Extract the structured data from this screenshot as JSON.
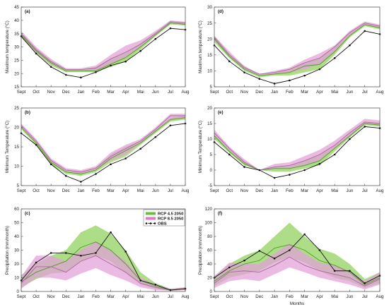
{
  "colors": {
    "rcp45": "#6dbf3b",
    "rcp85": "#d77fc6",
    "obs": "#111111",
    "rcp45_band": "#8fd05a",
    "rcp85_band": "#e3a0d8",
    "overlap": "#a8a2bf"
  },
  "months": [
    "Sept",
    "Oct",
    "Nov",
    "Dec",
    "Jan",
    "Feb",
    "Mar",
    "Apr",
    "Mai",
    "Jun",
    "Jul",
    "Aug"
  ],
  "xlabel_bottom": "Months",
  "legend": {
    "rcp45": "RCP 4.5 2050",
    "rcp85": "RCP 8.5 2050",
    "obs": "OBS"
  },
  "chart_data": [
    {
      "panel": "(a)",
      "type": "line",
      "ylabel": "Maximum temperature (°C)",
      "ylim": [
        15,
        45
      ],
      "yticks": [
        15,
        20,
        25,
        30,
        35,
        40,
        45
      ],
      "obs": [
        34,
        27.5,
        22.5,
        19.5,
        18.5,
        20.5,
        23,
        24.5,
        28.5,
        33,
        37,
        36.5
      ],
      "rcp45": {
        "mean": [
          34.5,
          28.5,
          24,
          21,
          21,
          21,
          23.5,
          26,
          30,
          34.5,
          39,
          38.5
        ],
        "low": [
          33.5,
          27.5,
          23,
          20.5,
          20.5,
          20.5,
          22.5,
          24.5,
          29,
          34,
          38.5,
          38
        ],
        "high": [
          35.5,
          29.5,
          25,
          21.5,
          21.5,
          22.5,
          25.5,
          28,
          31.5,
          35.5,
          39.5,
          39
        ]
      },
      "rcp85": {
        "mean": [
          35,
          29,
          24.5,
          21.5,
          21.5,
          22,
          25.5,
          28,
          31,
          35,
          39.5,
          39
        ],
        "low": [
          34,
          28,
          23.5,
          21,
          21,
          21,
          23.5,
          26,
          30,
          34.5,
          39,
          38.5
        ],
        "high": [
          36,
          30,
          25.5,
          22,
          22,
          23,
          27,
          30.5,
          32.5,
          36,
          40,
          39.5
        ]
      }
    },
    {
      "panel": "(d)",
      "type": "line",
      "ylabel": "Maximum temperature (°C)",
      "ylim": [
        5,
        30
      ],
      "yticks": [
        5,
        10,
        15,
        20,
        25,
        30
      ],
      "obs": [
        18,
        13,
        9.5,
        7.5,
        6,
        7,
        8.5,
        10.5,
        14,
        18,
        22.5,
        21.5
      ],
      "rcp45": {
        "mean": [
          20,
          14.5,
          10.5,
          8.5,
          9,
          9.5,
          11.5,
          12,
          16,
          21,
          24.5,
          23.5
        ],
        "low": [
          19,
          14,
          10,
          8,
          8.5,
          8.5,
          9.5,
          10.5,
          15,
          20.5,
          24,
          23
        ],
        "high": [
          21,
          15.5,
          11.5,
          9,
          9.5,
          10.5,
          12.5,
          14,
          17.5,
          22,
          25,
          24
        ]
      },
      "rcp85": {
        "mean": [
          20.5,
          15,
          11,
          9,
          9.5,
          10.5,
          12.5,
          14,
          17.5,
          22,
          25,
          24
        ],
        "low": [
          19.5,
          14.5,
          10.5,
          8.5,
          9,
          9.5,
          10.5,
          12,
          16,
          21,
          24.5,
          23.5
        ],
        "high": [
          21,
          16,
          11.5,
          9,
          10,
          11,
          13.5,
          15.5,
          18,
          22.5,
          25.5,
          24.5
        ]
      }
    },
    {
      "panel": "(b)",
      "type": "line",
      "ylabel": "Minimum Temperature (°C)",
      "ylim": [
        5,
        25
      ],
      "yticks": [
        5,
        10,
        15,
        20,
        25
      ],
      "obs": [
        18.5,
        15.5,
        10.5,
        7.5,
        6,
        8,
        10.5,
        12,
        14.5,
        17.5,
        20.5,
        21
      ],
      "rcp45": {
        "mean": [
          20,
          16,
          11,
          8.5,
          8,
          9,
          12,
          14,
          16,
          19,
          22,
          22.5
        ],
        "low": [
          19.5,
          15.5,
          10.5,
          8,
          7.5,
          8.5,
          11,
          12.5,
          15.5,
          18.5,
          21.5,
          22
        ],
        "high": [
          20.5,
          16.5,
          11.5,
          9,
          8.5,
          9.5,
          13,
          15,
          16.5,
          19.5,
          22.5,
          23
        ]
      },
      "rcp85": {
        "mean": [
          20.5,
          16.5,
          11.5,
          9,
          8.5,
          9.5,
          12.5,
          14.5,
          16.5,
          19.5,
          23,
          23
        ],
        "low": [
          20,
          16,
          11,
          8.5,
          8,
          9,
          11.5,
          13,
          16,
          19,
          22,
          22.5
        ],
        "high": [
          21,
          17,
          12,
          9.5,
          9,
          10,
          13.5,
          15.5,
          17,
          20,
          23.5,
          23.5
        ]
      }
    },
    {
      "panel": "(e)",
      "type": "line",
      "ylabel": "Minimum Temperature (°C)",
      "ylim": [
        -5,
        20
      ],
      "yticks": [
        -5,
        0,
        5,
        10,
        15,
        20
      ],
      "obs": [
        9,
        5,
        1,
        0,
        -2.5,
        -1.5,
        0,
        2,
        5,
        10,
        14,
        13.5
      ],
      "rcp45": {
        "mean": [
          11,
          6,
          2,
          0,
          0.5,
          0.5,
          1.5,
          3,
          7,
          11,
          15,
          14.5
        ],
        "low": [
          10,
          5.5,
          1.5,
          0,
          -0.5,
          -0.5,
          0.5,
          1.5,
          6,
          10.5,
          14.5,
          14
        ],
        "high": [
          12,
          7,
          3,
          0,
          1,
          1.5,
          3,
          5,
          8,
          12,
          15.5,
          15
        ]
      },
      "rcp85": {
        "mean": [
          12,
          7,
          2.5,
          0,
          1,
          1.5,
          3,
          5,
          8,
          12,
          15.5,
          15
        ],
        "low": [
          11,
          6,
          2,
          0,
          0.5,
          0.5,
          1.5,
          3,
          7,
          11,
          15,
          14.5
        ],
        "high": [
          13,
          7.5,
          3.5,
          0,
          2,
          2.5,
          4.5,
          6.5,
          9.5,
          13,
          16.5,
          16
        ]
      }
    },
    {
      "panel": "(c)",
      "type": "line",
      "ylabel": "Precipitation (mm/month)",
      "ylim": [
        0,
        60
      ],
      "yticks": [
        0,
        10,
        20,
        30,
        40,
        50,
        60
      ],
      "obs": [
        8,
        21,
        28,
        28,
        26,
        28,
        43,
        29,
        8,
        5,
        1,
        2
      ],
      "rcp45": {
        "mean": [
          7,
          14,
          18,
          22,
          32,
          36,
          30,
          20,
          8,
          4,
          1,
          2
        ],
        "low": [
          3,
          9,
          13,
          14,
          22,
          26,
          22,
          13,
          5,
          2,
          0.5,
          1
        ],
        "high": [
          12,
          20,
          26,
          30,
          43,
          48,
          42,
          30,
          14,
          6,
          2,
          3
        ]
      },
      "rcp85": {
        "mean": [
          6,
          18,
          18,
          14,
          22,
          26,
          20,
          14,
          6,
          3,
          1,
          2
        ],
        "low": [
          2,
          10,
          10,
          8,
          13,
          17,
          12,
          8,
          3,
          1,
          0.5,
          1
        ],
        "high": [
          11,
          26,
          26,
          22,
          30,
          36,
          30,
          22,
          10,
          5,
          2,
          3
        ]
      }
    },
    {
      "panel": "(f)",
      "type": "line",
      "ylabel": "Precipitation (mm/month)",
      "ylim": [
        0,
        120
      ],
      "yticks": [
        0,
        20,
        40,
        60,
        80,
        100,
        120
      ],
      "obs": [
        20,
        35,
        45,
        59,
        48,
        60,
        83,
        60,
        30,
        30,
        12,
        23
      ],
      "rcp45": {
        "mean": [
          15,
          30,
          40,
          45,
          63,
          68,
          60,
          45,
          38,
          28,
          10,
          20
        ],
        "low": [
          8,
          20,
          25,
          30,
          42,
          50,
          42,
          30,
          20,
          15,
          5,
          12
        ],
        "high": [
          22,
          40,
          52,
          60,
          80,
          100,
          80,
          62,
          55,
          40,
          18,
          28
        ]
      },
      "rcp85": {
        "mean": [
          12,
          28,
          30,
          28,
          38,
          50,
          38,
          30,
          25,
          20,
          8,
          18
        ],
        "low": [
          5,
          15,
          18,
          15,
          25,
          35,
          28,
          20,
          15,
          10,
          3,
          10
        ],
        "high": [
          22,
          42,
          40,
          40,
          55,
          70,
          55,
          42,
          38,
          30,
          15,
          28
        ]
      }
    }
  ]
}
